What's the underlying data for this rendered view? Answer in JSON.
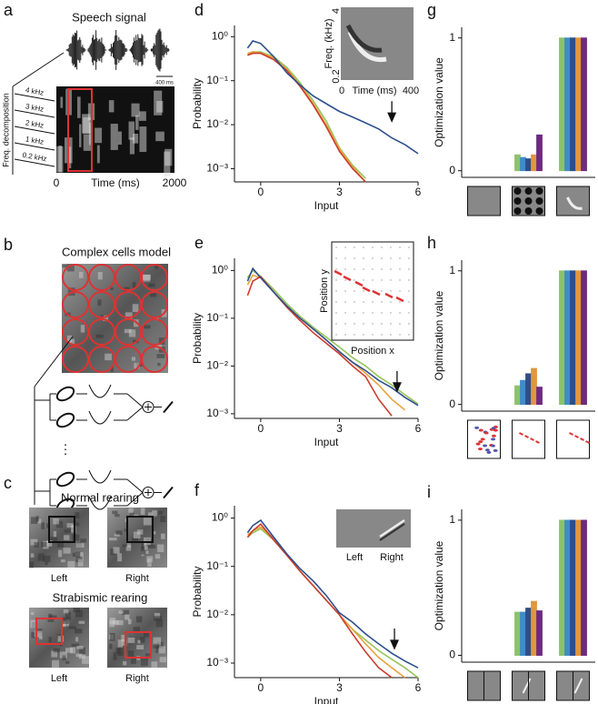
{
  "illustrations": [
    {
      "panel": "a",
      "title": "Speech signal",
      "scale_bar": "400 ms",
      "y_label": "Freq. decomposition",
      "bands": [
        "4 kHz",
        "3 kHz",
        "2 kHz",
        "1 kHz",
        "0.2 kHz"
      ],
      "x_label": "Time (ms)",
      "x_ticks": [
        0,
        2000
      ]
    },
    {
      "panel": "b",
      "title": "Complex cells model",
      "ellipsis": "⋮"
    },
    {
      "panel": "c",
      "groups": [
        {
          "title": "Normal rearing",
          "labels": [
            "Left",
            "Right"
          ]
        },
        {
          "title": "Strabismic rearing",
          "labels": [
            "Left",
            "Right"
          ]
        }
      ]
    }
  ],
  "chart_data": [
    {
      "type": "line",
      "panel": "d",
      "x_label": "Input",
      "y_label": "Probability",
      "log_y": true,
      "xlim": [
        -1,
        6
      ],
      "xticks": [
        0,
        3,
        6
      ],
      "ylim": [
        0.0005,
        1.8
      ],
      "yticks": [
        {
          "value": 0.001,
          "label": "10⁻³"
        },
        {
          "value": 0.01,
          "label": "10⁻²"
        },
        {
          "value": 0.1,
          "label": "10⁻¹"
        },
        {
          "value": 1,
          "label": "10⁰"
        }
      ],
      "x": [
        -0.5,
        -0.3,
        0,
        0.5,
        1,
        1.5,
        2,
        2.5,
        3,
        3.5,
        4,
        4.5,
        5,
        5.5,
        6
      ],
      "series": [
        {
          "color": "#97c45a",
          "values": [
            0.4,
            0.45,
            0.45,
            0.35,
            0.2,
            0.09,
            0.035,
            0.012,
            0.003,
            0.0012,
            0.0006,
            null,
            null,
            null,
            null
          ]
        },
        {
          "color": "#e8a33d",
          "values": [
            0.42,
            0.45,
            0.43,
            0.33,
            0.18,
            0.08,
            0.03,
            0.01,
            0.0028,
            0.0011,
            0.0005,
            null,
            null,
            null,
            null
          ]
        },
        {
          "color": "#cc3b2e",
          "values": [
            0.38,
            0.42,
            0.42,
            0.3,
            0.17,
            0.075,
            0.028,
            0.009,
            0.0025,
            0.001,
            0.0005,
            null,
            null,
            null,
            null
          ]
        },
        {
          "color": "#2d4f8e",
          "values": [
            0.55,
            0.8,
            0.7,
            0.35,
            0.15,
            0.08,
            0.045,
            0.03,
            0.02,
            0.015,
            0.011,
            0.008,
            0.005,
            0.0035,
            0.0022
          ]
        }
      ],
      "arrow": {
        "x": 5,
        "y": 0.012
      },
      "inset": {
        "y_label": "Freq. (kHz)",
        "y_ticks": [
          0.2,
          4
        ],
        "x_label": "Time (ms)",
        "x_ticks": [
          0,
          400
        ]
      }
    },
    {
      "type": "line",
      "panel": "e",
      "x_label": "Input",
      "y_label": "Probability",
      "log_y": true,
      "xlim": [
        -1,
        6
      ],
      "xticks": [
        0,
        3,
        6
      ],
      "ylim": [
        0.0008,
        1.8
      ],
      "yticks": [
        {
          "value": 0.001,
          "label": "10⁻³"
        },
        {
          "value": 0.01,
          "label": "10⁻²"
        },
        {
          "value": 0.1,
          "label": "10⁻¹"
        },
        {
          "value": 1,
          "label": "10⁰"
        }
      ],
      "x": [
        -0.5,
        -0.3,
        0,
        0.5,
        1,
        1.5,
        2,
        2.5,
        3,
        3.5,
        4,
        4.5,
        5,
        5.5,
        6
      ],
      "series": [
        {
          "color": "#97c45a",
          "values": [
            0.7,
            1.0,
            0.75,
            0.4,
            0.2,
            0.11,
            0.065,
            0.04,
            0.025,
            0.015,
            0.01,
            0.006,
            0.004,
            0.0025,
            0.0016
          ]
        },
        {
          "color": "#e8a33d",
          "values": [
            0.5,
            0.8,
            0.7,
            0.35,
            0.18,
            0.1,
            0.06,
            0.035,
            0.02,
            0.012,
            0.007,
            0.004,
            0.002,
            0.0012,
            null
          ]
        },
        {
          "color": "#cc3b2e",
          "values": [
            0.3,
            0.6,
            0.75,
            0.35,
            0.17,
            0.09,
            0.05,
            0.03,
            0.018,
            0.01,
            0.006,
            0.002,
            0.0009,
            null,
            null
          ]
        },
        {
          "color": "#2d4f8e",
          "values": [
            0.6,
            1.1,
            0.7,
            0.35,
            0.18,
            0.1,
            0.06,
            0.035,
            0.02,
            0.012,
            0.008,
            0.005,
            0.0035,
            0.0022,
            0.0015
          ]
        }
      ],
      "arrow": {
        "x": 5.2,
        "y": 0.003
      },
      "inset": {
        "y_label": "Position y",
        "x_label": "Position x"
      }
    },
    {
      "type": "line",
      "panel": "f",
      "x_label": "Input",
      "y_label": "Probability",
      "log_y": true,
      "xlim": [
        -1,
        6
      ],
      "xticks": [
        0,
        3,
        6
      ],
      "ylim": [
        0.0005,
        1.8
      ],
      "yticks": [
        {
          "value": 0.001,
          "label": "10⁻³"
        },
        {
          "value": 0.01,
          "label": "10⁻²"
        },
        {
          "value": 0.1,
          "label": "10⁻¹"
        },
        {
          "value": 1,
          "label": "10⁰"
        }
      ],
      "x": [
        -0.5,
        -0.3,
        0,
        0.5,
        1,
        1.5,
        2,
        2.5,
        3,
        3.5,
        4,
        4.5,
        5,
        5.5,
        6
      ],
      "series": [
        {
          "color": "#97c45a",
          "values": [
            0.4,
            0.5,
            0.6,
            0.35,
            0.17,
            0.08,
            0.04,
            0.02,
            0.01,
            0.005,
            0.003,
            0.0018,
            0.0012,
            0.0008,
            0.0005
          ]
        },
        {
          "color": "#e8a33d",
          "values": [
            0.45,
            0.55,
            0.65,
            0.38,
            0.17,
            0.08,
            0.04,
            0.02,
            0.01,
            0.005,
            0.0025,
            0.0013,
            0.0008,
            0.0005,
            null
          ]
        },
        {
          "color": "#cc3b2e",
          "values": [
            0.4,
            0.55,
            0.75,
            0.35,
            0.17,
            0.08,
            0.04,
            0.02,
            0.01,
            0.004,
            0.0017,
            0.0008,
            0.0005,
            null,
            null
          ]
        },
        {
          "color": "#2d4f8e",
          "values": [
            0.5,
            0.7,
            0.9,
            0.4,
            0.18,
            0.09,
            0.05,
            0.025,
            0.011,
            0.007,
            0.004,
            0.0025,
            0.0016,
            0.0011,
            0.0008
          ]
        }
      ],
      "arrow": {
        "x": 5.1,
        "y": 0.002
      },
      "inset": {
        "labels": [
          "Left",
          "Right"
        ]
      }
    },
    {
      "type": "bar",
      "panel": "g",
      "y_label": "Optimization value",
      "ylim": [
        -0.05,
        1.08
      ],
      "yticks": [
        0,
        1
      ],
      "categories": [
        null,
        null,
        null
      ],
      "series": [
        {
          "color": "#8cc26a",
          "values": [
            0,
            0.12,
            1
          ]
        },
        {
          "color": "#3f8cc9",
          "values": [
            0,
            0.1,
            1
          ]
        },
        {
          "color": "#2c4f8a",
          "values": [
            0,
            0.09,
            1
          ]
        },
        {
          "color": "#e3963c",
          "values": [
            0,
            0.12,
            1
          ]
        },
        {
          "color": "#6e2a7e",
          "values": [
            0,
            0.27,
            1
          ]
        }
      ]
    },
    {
      "type": "bar",
      "panel": "h",
      "y_label": "Optimization value",
      "ylim": [
        -0.05,
        1.08
      ],
      "yticks": [
        0,
        1
      ],
      "categories": [
        null,
        null,
        null
      ],
      "series": [
        {
          "color": "#8cc26a",
          "values": [
            0,
            0.14,
            1
          ]
        },
        {
          "color": "#3f8cc9",
          "values": [
            0,
            0.18,
            1
          ]
        },
        {
          "color": "#2c4f8a",
          "values": [
            0,
            0.23,
            1
          ]
        },
        {
          "color": "#e3963c",
          "values": [
            0,
            0.27,
            1
          ]
        },
        {
          "color": "#6e2a7e",
          "values": [
            0,
            0.13,
            1
          ]
        }
      ]
    },
    {
      "type": "bar",
      "panel": "i",
      "y_label": "Optimization value",
      "ylim": [
        -0.05,
        1.08
      ],
      "yticks": [
        0,
        1
      ],
      "categories": [
        null,
        null,
        null
      ],
      "series": [
        {
          "color": "#8cc26a",
          "values": [
            0,
            0.32,
            1
          ]
        },
        {
          "color": "#3f8cc9",
          "values": [
            0,
            0.32,
            1
          ]
        },
        {
          "color": "#2c4f8a",
          "values": [
            0,
            0.35,
            1
          ]
        },
        {
          "color": "#e3963c",
          "values": [
            0,
            0.4,
            1
          ]
        },
        {
          "color": "#6e2a7e",
          "values": [
            0,
            0.33,
            1
          ]
        }
      ]
    }
  ]
}
